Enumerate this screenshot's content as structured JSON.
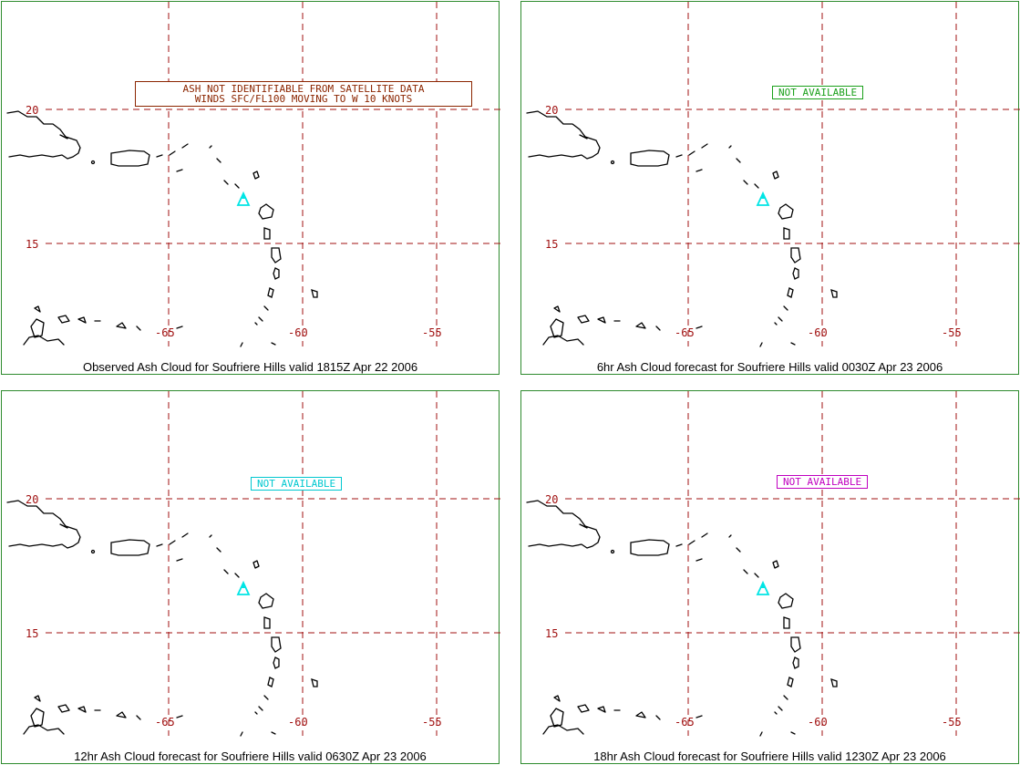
{
  "panels": [
    {
      "caption": "Observed Ash Cloud for Soufriere  Hills valid 1815Z Apr 22 2006",
      "notice_lines": [
        "ASH NOT IDENTIFIABLE FROM SATELLITE DATA",
        "WINDS SFC/FL100 MOVING TO W 10 KNOTS"
      ],
      "notice_color": "#8b2500",
      "volcano_marker_color": "#00e5e5"
    },
    {
      "caption": "6hr Ash Cloud forecast for Soufriere  Hills valid 0030Z Apr 23 2006",
      "notice_lines": [
        "NOT AVAILABLE"
      ],
      "notice_color": "#1aa01a",
      "volcano_marker_color": "#00e5e5"
    },
    {
      "caption": "12hr Ash Cloud forecast for Soufriere  Hills valid 0630Z Apr 23 2006",
      "notice_lines": [
        "NOT AVAILABLE"
      ],
      "notice_color": "#00c8d0",
      "volcano_marker_color": "#00e5e5"
    },
    {
      "caption": "18hr Ash Cloud forecast for Soufriere  Hills valid 1230Z Apr 23 2006",
      "notice_lines": [
        "NOT AVAILABLE"
      ],
      "notice_color": "#c000c0",
      "volcano_marker_color": "#00e5e5"
    }
  ],
  "axes": {
    "lat_labels": [
      "20",
      "15"
    ],
    "lon_labels": [
      "-65",
      "-60",
      "-55"
    ],
    "grid_color": "#a01010"
  },
  "frame_color": "#2e8b2e"
}
